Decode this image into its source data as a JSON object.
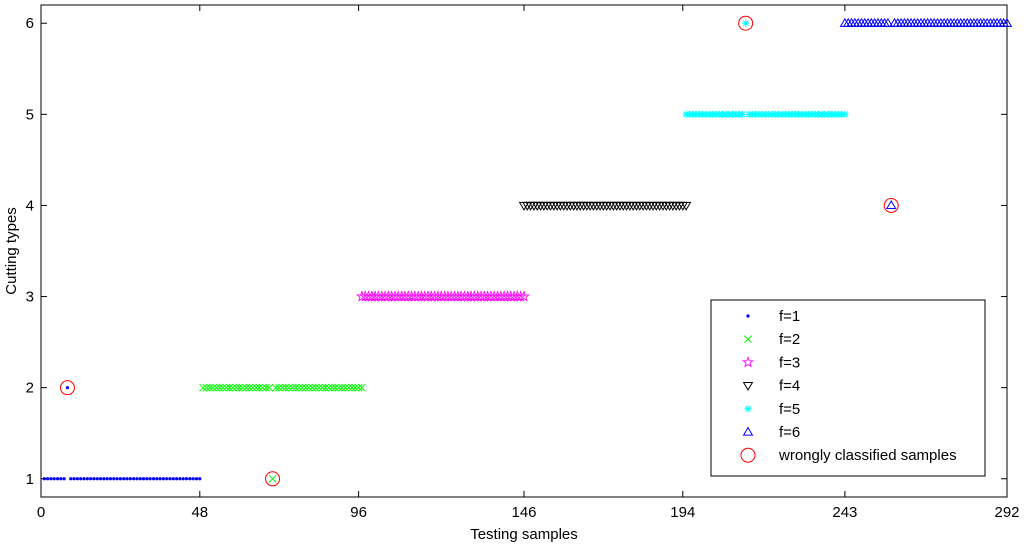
{
  "chart_data": {
    "type": "scatter",
    "xlabel": "Testing samples",
    "ylabel": "Cutting types",
    "xlim": [
      0,
      292
    ],
    "ylim": [
      0.8,
      6.2
    ],
    "xticks": [
      0,
      48,
      96,
      146,
      194,
      243,
      292
    ],
    "yticks": [
      1,
      2,
      3,
      4,
      5,
      6
    ],
    "grid": false,
    "legend_position": "bottom-right",
    "series": [
      {
        "name": "f=1",
        "marker": "dot",
        "color": "#0000ff",
        "y": 1,
        "x_range": [
          1,
          48
        ],
        "outliers": [
          {
            "x": 8,
            "y": 2
          }
        ]
      },
      {
        "name": "f=2",
        "marker": "x",
        "color": "#00ff00",
        "y": 2,
        "x_range": [
          49,
          97
        ],
        "outliers": [
          {
            "x": 70,
            "y": 1
          }
        ]
      },
      {
        "name": "f=3",
        "marker": "star",
        "color": "#ff00ff",
        "y": 3,
        "x_range": [
          97,
          146
        ],
        "outliers": []
      },
      {
        "name": "f=4",
        "marker": "triangle-down",
        "color": "#000000",
        "y": 4,
        "x_range": [
          146,
          195
        ],
        "outliers": []
      },
      {
        "name": "f=5",
        "marker": "asterisk",
        "color": "#00ffff",
        "y": 5,
        "x_range": [
          195,
          243
        ],
        "outliers": [
          {
            "x": 213,
            "y": 6
          }
        ]
      },
      {
        "name": "f=6",
        "marker": "triangle-up",
        "color": "#0000ff",
        "y": 6,
        "x_range": [
          243,
          292
        ],
        "outliers": [
          {
            "x": 257,
            "y": 4
          }
        ]
      }
    ],
    "wrongly_classified": {
      "name": "wrongly classified samples",
      "marker": "circle",
      "color": "#ff0000",
      "points": [
        {
          "x": 8,
          "y": 2
        },
        {
          "x": 70,
          "y": 1
        },
        {
          "x": 213,
          "y": 6
        },
        {
          "x": 257,
          "y": 4
        }
      ]
    }
  }
}
